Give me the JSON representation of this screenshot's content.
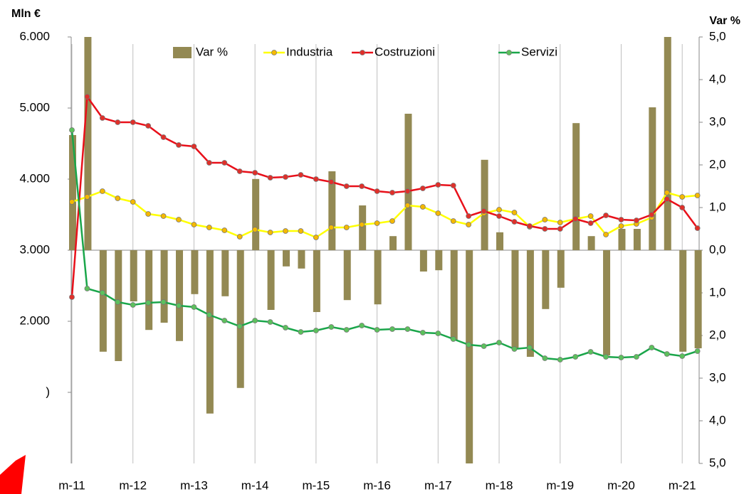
{
  "chart_data": {
    "type": "combo",
    "y_axis_title": "Mln €",
    "y2_axis_title": "Var %",
    "categories": [
      "m-11",
      null,
      null,
      null,
      "m-12",
      null,
      null,
      null,
      "m-13",
      null,
      null,
      null,
      "m-14",
      null,
      null,
      null,
      "m-15",
      null,
      null,
      null,
      "m-16",
      null,
      null,
      null,
      "m-17",
      null,
      null,
      null,
      "m-18",
      null,
      null,
      null,
      "m-19",
      null,
      null,
      null,
      "m-20",
      null,
      null,
      null,
      "m-21",
      null
    ],
    "ylim": [
      0,
      6000
    ],
    "yticks": [
      {
        "value": 6000,
        "label": "6.000"
      },
      {
        "value": 5000,
        "label": "5.000"
      },
      {
        "value": 4000,
        "label": "4.000"
      },
      {
        "value": 3000,
        "label": "3.000"
      },
      {
        "value": 2000,
        "label": "2.000"
      },
      {
        "value": 1000,
        "label": ")"
      }
    ],
    "y2lim": [
      -5,
      5
    ],
    "y2ticks": [
      {
        "value": 5,
        "label": "5,0"
      },
      {
        "value": 4,
        "label": "4,0"
      },
      {
        "value": 3,
        "label": "3,0"
      },
      {
        "value": 2,
        "label": "2,0"
      },
      {
        "value": 1,
        "label": "1,0"
      },
      {
        "value": 0,
        "label": "0,0"
      },
      {
        "value": -1,
        "label": "1,0"
      },
      {
        "value": -2,
        "label": "2,0"
      },
      {
        "value": -3,
        "label": "3,0"
      },
      {
        "value": -4,
        "label": "4,0"
      },
      {
        "value": -5,
        "label": "5,0"
      }
    ],
    "y2tick_negative_color": "#ff0000",
    "legend": "top",
    "series": [
      {
        "name": "Var %",
        "type": "bar",
        "axis": "y2",
        "color": "#938953",
        "values": [
          2.7,
          5.0,
          -2.38,
          -2.6,
          -1.2,
          -1.87,
          -1.7,
          -2.13,
          -1.03,
          -3.83,
          -1.08,
          -3.23,
          1.67,
          -1.4,
          -0.38,
          -0.43,
          -1.45,
          1.85,
          -1.17,
          1.05,
          -1.27,
          0.33,
          3.2,
          -0.5,
          -0.47,
          -2.1,
          -5.0,
          2.12,
          0.42,
          -2.3,
          -2.5,
          -1.38,
          -0.88,
          2.98,
          0.33,
          -2.47,
          0.5,
          0.5,
          3.35,
          5.0,
          -2.38,
          -2.3
        ]
      },
      {
        "name": "Industria",
        "type": "line",
        "color": "#ffff00",
        "marker_color": "#f5b800",
        "values": [
          3680,
          3750,
          3830,
          3730,
          3680,
          3510,
          3480,
          3430,
          3360,
          3320,
          3280,
          3190,
          3290,
          3250,
          3270,
          3270,
          3180,
          3320,
          3320,
          3360,
          3380,
          3410,
          3630,
          3610,
          3520,
          3410,
          3360,
          3520,
          3570,
          3530,
          3330,
          3430,
          3390,
          3440,
          3480,
          3220,
          3340,
          3370,
          3460,
          3810,
          3750,
          3770
        ]
      },
      {
        "name": "Costruzioni",
        "type": "line",
        "color": "#e8101a",
        "marker_color": "#e0302a",
        "values": [
          2340,
          5160,
          4860,
          4800,
          4800,
          4750,
          4590,
          4480,
          4460,
          4230,
          4230,
          4110,
          4090,
          4020,
          4030,
          4060,
          4000,
          3960,
          3900,
          3900,
          3830,
          3810,
          3830,
          3870,
          3920,
          3910,
          3480,
          3550,
          3480,
          3400,
          3340,
          3300,
          3300,
          3440,
          3380,
          3490,
          3430,
          3420,
          3500,
          3720,
          3600,
          3310
        ]
      },
      {
        "name": "Servizi",
        "type": "line",
        "color": "#1aa64a",
        "marker_color": "#5cc15c",
        "values": [
          4690,
          2460,
          2400,
          2270,
          2230,
          2260,
          2270,
          2220,
          2200,
          2090,
          2010,
          1930,
          2010,
          1990,
          1910,
          1850,
          1870,
          1920,
          1880,
          1940,
          1880,
          1890,
          1890,
          1840,
          1830,
          1750,
          1670,
          1650,
          1700,
          1610,
          1630,
          1480,
          1460,
          1500,
          1570,
          1500,
          1490,
          1500,
          1630,
          1540,
          1510,
          1580
        ]
      }
    ]
  }
}
